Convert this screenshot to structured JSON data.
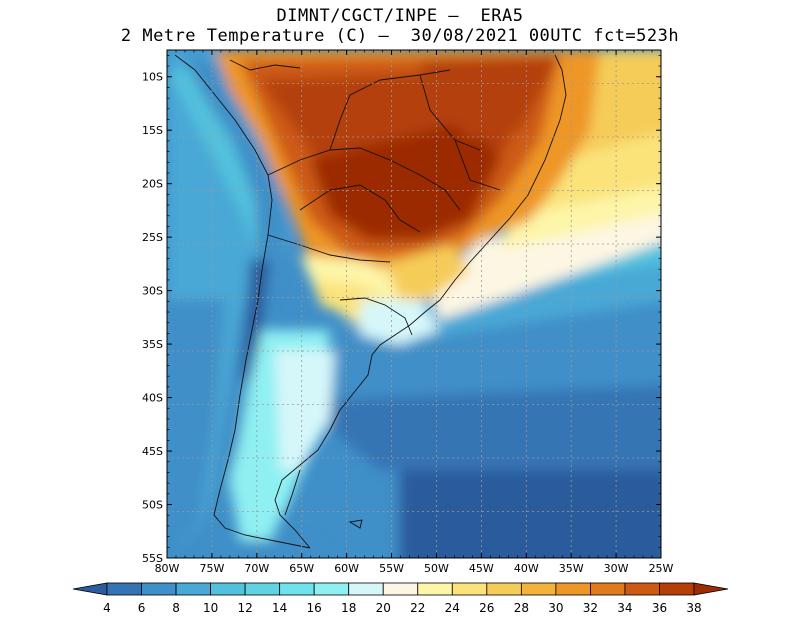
{
  "header": {
    "line1": "DIMNT/CGCT/INPE –  ERA5",
    "line2": "2 Metre Temperature (C) –  30/08/2021 00UTC fct=523h"
  },
  "map": {
    "lat_labels": [
      "10S",
      "15S",
      "20S",
      "25S",
      "30S",
      "35S",
      "40S",
      "45S",
      "50S",
      "55S"
    ],
    "lon_labels": [
      "80W",
      "75W",
      "70W",
      "65W",
      "60W",
      "55W",
      "50W",
      "45W",
      "40W",
      "35W",
      "30W",
      "25W"
    ],
    "lat_range": [
      -55,
      -7.5
    ],
    "lon_range": [
      -80,
      -25
    ]
  },
  "colorbar": {
    "labels": [
      "4",
      "6",
      "8",
      "10",
      "12",
      "14",
      "16",
      "18",
      "20",
      "22",
      "24",
      "26",
      "28",
      "30",
      "32",
      "34",
      "36",
      "38"
    ],
    "colors": [
      "#2b5c9c",
      "#3574b4",
      "#3f8fc8",
      "#48a8d6",
      "#52c1dd",
      "#5fd3e4",
      "#6ee3ec",
      "#8ff0f2",
      "#d6f7fa",
      "#fdf6e3",
      "#fdf5a8",
      "#fbe37a",
      "#f6cc59",
      "#f2b23c",
      "#ee9628",
      "#e07a1c",
      "#cd5a12",
      "#b44008",
      "#9c2c04"
    ]
  }
}
